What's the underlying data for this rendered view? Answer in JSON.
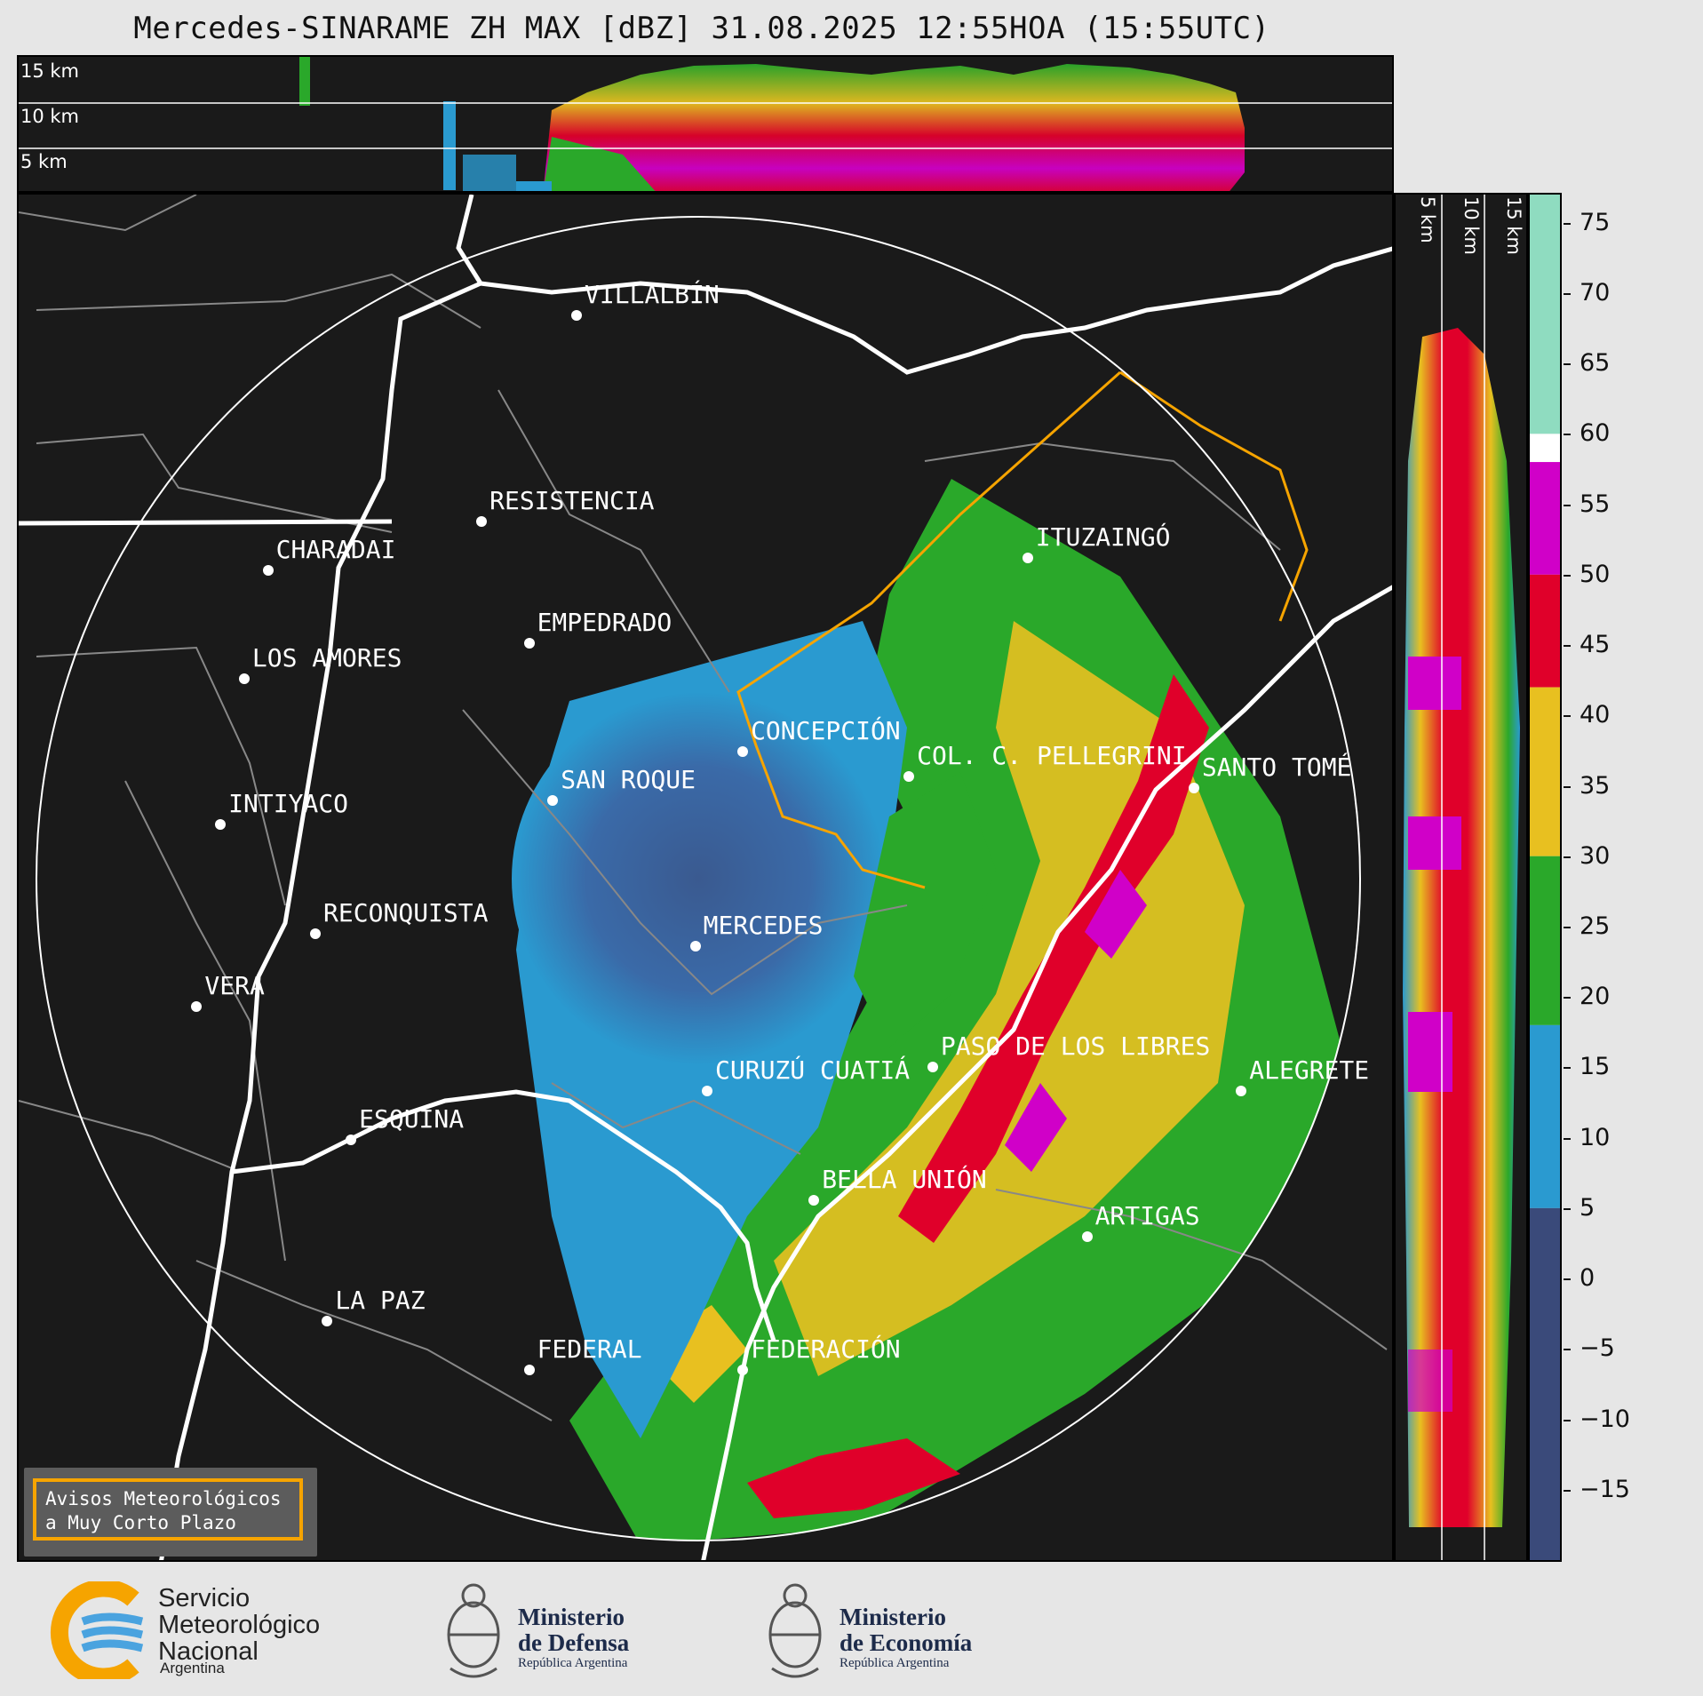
{
  "title": "Mercedes-SINARAME ZH MAX [dBZ] 31.08.2025 12:55HOA (15:55UTC)",
  "top_profile": {
    "altitude_labels": [
      "15 km",
      "10 km",
      "5 km"
    ]
  },
  "right_profile": {
    "altitude_labels": [
      "5 km",
      "10 km",
      "15 km"
    ]
  },
  "colorbar": {
    "unit": "dBZ",
    "range": [
      -20,
      77
    ],
    "ticks": [
      "75",
      "70",
      "65",
      "60",
      "55",
      "50",
      "45",
      "40",
      "35",
      "30",
      "25",
      "20",
      "15",
      "10",
      "5",
      "0",
      "−5",
      "−10",
      "−15"
    ],
    "stops": [
      {
        "from": 60,
        "to": 77,
        "color": "#8fdcc0"
      },
      {
        "from": 58,
        "to": 60,
        "color": "#ffffff"
      },
      {
        "from": 50,
        "to": 58,
        "color": "#d000c8"
      },
      {
        "from": 42,
        "to": 50,
        "color": "#e0002a"
      },
      {
        "from": 30,
        "to": 42,
        "color": "#e8c020"
      },
      {
        "from": 18,
        "to": 30,
        "color": "#2aa82a"
      },
      {
        "from": 5,
        "to": 18,
        "color": "#2a9ad0"
      },
      {
        "from": -20,
        "to": 5,
        "color": "#3a4a7a"
      }
    ]
  },
  "map": {
    "range_ring": true,
    "cities": [
      {
        "name": "VILLALBÍN",
        "lon": -58.6,
        "lat": -26.6
      },
      {
        "name": "RESISTENCIA",
        "lon": -59.0,
        "lat": -27.45
      },
      {
        "name": "CHARADAI",
        "lon": -59.9,
        "lat": -27.65
      },
      {
        "name": "EMPEDRADO",
        "lon": -58.8,
        "lat": -27.95
      },
      {
        "name": "LOS AMORES",
        "lon": -60.0,
        "lat": -28.1
      },
      {
        "name": "CONCEPCIÓN",
        "lon": -57.9,
        "lat": -28.4
      },
      {
        "name": "SAN ROQUE",
        "lon": -58.7,
        "lat": -28.6
      },
      {
        "name": "COL. C. PELLEGRINI",
        "lon": -57.2,
        "lat": -28.5
      },
      {
        "name": "SANTO TOMÉ",
        "lon": -56.0,
        "lat": -28.55
      },
      {
        "name": "ITUZAINGÓ",
        "lon": -56.7,
        "lat": -27.6
      },
      {
        "name": "INTIYACO",
        "lon": -60.1,
        "lat": -28.7
      },
      {
        "name": "RECONQUISTA",
        "lon": -59.7,
        "lat": -29.15
      },
      {
        "name": "MERCEDES",
        "lon": -58.1,
        "lat": -29.2
      },
      {
        "name": "VERA",
        "lon": -60.2,
        "lat": -29.45
      },
      {
        "name": "PASO DE LOS LIBRES",
        "lon": -57.1,
        "lat": -29.7
      },
      {
        "name": "CURUZÚ CUATIÁ",
        "lon": -58.05,
        "lat": -29.8
      },
      {
        "name": "ALEGRETE",
        "lon": -55.8,
        "lat": -29.8
      },
      {
        "name": "ESQUINA",
        "lon": -59.55,
        "lat": -30.0
      },
      {
        "name": "BELLA UNIÓN",
        "lon": -57.6,
        "lat": -30.25
      },
      {
        "name": "ARTIGAS",
        "lon": -56.45,
        "lat": -30.4
      },
      {
        "name": "LA PAZ",
        "lon": -59.65,
        "lat": -30.75
      },
      {
        "name": "FEDERAL",
        "lon": -58.8,
        "lat": -30.95
      },
      {
        "name": "FEDERACIÓN",
        "lon": -57.9,
        "lat": -30.95
      }
    ],
    "notice": [
      "Avisos Meteorológicos",
      "a Muy Corto Plazo"
    ]
  },
  "logos": {
    "smn": {
      "lines": [
        "Servicio",
        "Meteorológico",
        "Nacional"
      ],
      "country": "Argentina",
      "icon": "smn-logo-icon",
      "colors": [
        "#f6a400",
        "#4aa3df"
      ]
    },
    "defensa": {
      "lines": [
        "Ministerio",
        "de Defensa"
      ],
      "sub": "República Argentina",
      "icon": "coat-of-arms-icon"
    },
    "economia": {
      "lines": [
        "Ministerio",
        "de Economía"
      ],
      "sub": "República Argentina",
      "icon": "coat-of-arms-icon"
    }
  }
}
